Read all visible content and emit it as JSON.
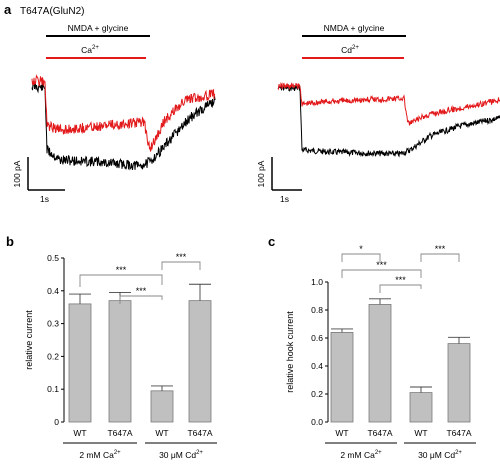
{
  "panels": {
    "a": "a",
    "b": "b",
    "c": "c"
  },
  "colors": {
    "ca_trace": "#e31a1c",
    "cd_trace": "#e31a1c",
    "control_trace": "#000000",
    "bar_fill": "#c0c0c0",
    "bracket": "#888888"
  },
  "panel_a": {
    "title": "T647A(GluN2)",
    "left": {
      "bar1_label": "NMDA + glycine",
      "bar2_label": "Ca",
      "bar2_sup": "2+",
      "scale_y": "100 pA",
      "scale_x": "1s"
    },
    "right": {
      "bar1_label": "NMDA + glycine",
      "bar2_label": "Cd",
      "bar2_sup": "2+",
      "scale_y": "100 pA",
      "scale_x": "1s"
    }
  },
  "chart_data": [
    {
      "type": "bar",
      "panel": "b",
      "categories": [
        "WT",
        "T647A",
        "WT",
        "T647A"
      ],
      "values": [
        0.36,
        0.37,
        0.095,
        0.37
      ],
      "errors": [
        0.03,
        0.025,
        0.015,
        0.05
      ],
      "group_labels": [
        {
          "prefix": "2 mM Ca",
          "sup": "2+"
        },
        {
          "prefix": "30 μM Cd",
          "sup": "2+"
        }
      ],
      "ylabel": "relative current",
      "ylim": [
        0,
        0.5
      ],
      "yticks": [
        "0",
        "0.1",
        "0.2",
        "0.3",
        "0.4",
        "0.5"
      ],
      "significance": [
        {
          "from": 0,
          "to": 2,
          "label": "***"
        },
        {
          "from": 1,
          "to": 2,
          "label": "***"
        },
        {
          "from": 2,
          "to": 3,
          "label": "***"
        }
      ]
    },
    {
      "type": "bar",
      "panel": "c",
      "categories": [
        "WT",
        "T647A",
        "WT",
        "T647A"
      ],
      "values": [
        0.64,
        0.84,
        0.21,
        0.56
      ],
      "errors": [
        0.025,
        0.04,
        0.04,
        0.045
      ],
      "group_labels": [
        {
          "prefix": "2 mM Ca",
          "sup": "2+"
        },
        {
          "prefix": "30 μM Cd",
          "sup": "2+"
        }
      ],
      "ylabel": "relative hook current",
      "ylim": [
        0,
        1.0
      ],
      "yticks": [
        "0.0",
        "0.2",
        "0.4",
        "0.6",
        "0.8",
        "1.0"
      ],
      "significance": [
        {
          "from": 0,
          "to": 1,
          "label": "*"
        },
        {
          "from": 0,
          "to": 2,
          "label": "***"
        },
        {
          "from": 1,
          "to": 2,
          "label": "***"
        },
        {
          "from": 2,
          "to": 3,
          "label": "***"
        }
      ]
    }
  ]
}
